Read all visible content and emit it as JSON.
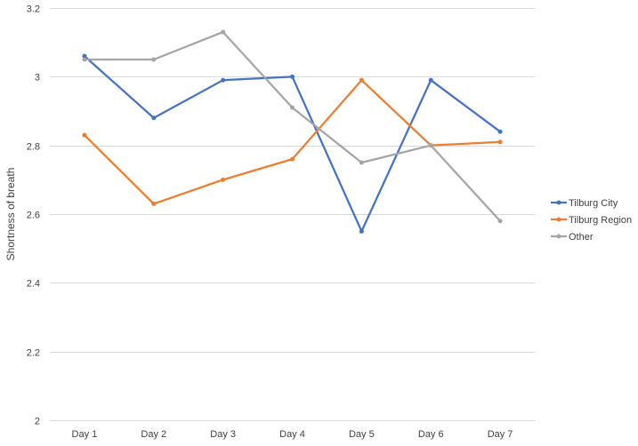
{
  "chart_data": {
    "type": "line",
    "categories": [
      "Day 1",
      "Day 2",
      "Day 3",
      "Day 4",
      "Day 5",
      "Day 6",
      "Day 7"
    ],
    "series": [
      {
        "name": "Tilburg City",
        "color": "#4472C4",
        "values": [
          3.06,
          2.88,
          2.99,
          3.0,
          2.55,
          2.99,
          2.84
        ]
      },
      {
        "name": "Tilburg Region",
        "color": "#ED7D31",
        "values": [
          2.83,
          2.63,
          2.7,
          2.76,
          2.99,
          2.8,
          2.81
        ]
      },
      {
        "name": "Other",
        "color": "#A5A5A5",
        "values": [
          3.05,
          3.05,
          3.13,
          2.91,
          2.75,
          2.8,
          2.58
        ]
      }
    ],
    "title": "",
    "xlabel": "",
    "ylabel": "Shortness of breath",
    "ylim": [
      2,
      3.2
    ],
    "yticks": [
      "2",
      "2.2",
      "2.4",
      "2.6",
      "2.8",
      "3",
      "3.2"
    ],
    "grid": true,
    "legend_position": "right"
  }
}
